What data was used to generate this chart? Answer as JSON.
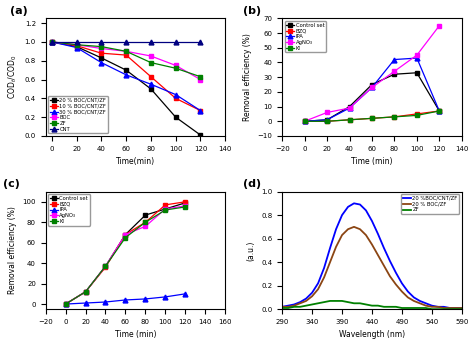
{
  "a_time": [
    0,
    20,
    40,
    60,
    80,
    100,
    120
  ],
  "a_20BOC": [
    1.0,
    0.95,
    0.83,
    0.7,
    0.5,
    0.2,
    0.01
  ],
  "a_10BOC": [
    1.0,
    0.96,
    0.88,
    0.86,
    0.63,
    0.4,
    0.27
  ],
  "a_30BOC": [
    1.0,
    0.94,
    0.78,
    0.65,
    0.55,
    0.44,
    0.27
  ],
  "a_BOC": [
    1.0,
    0.97,
    0.93,
    0.9,
    0.85,
    0.75,
    0.6
  ],
  "a_ZF": [
    1.0,
    0.97,
    0.95,
    0.9,
    0.78,
    0.72,
    0.63
  ],
  "a_CNT": [
    1.0,
    1.0,
    1.0,
    1.0,
    1.0,
    1.0,
    1.0
  ],
  "b_time": [
    0,
    20,
    40,
    60,
    80,
    100,
    120
  ],
  "b_control": [
    0,
    1,
    10,
    25,
    32,
    33,
    7
  ],
  "b_BZQ": [
    0,
    0,
    1,
    2,
    3,
    5,
    7
  ],
  "b_IPA": [
    0,
    1,
    9,
    23,
    42,
    43,
    7
  ],
  "b_AgNO3": [
    0,
    6,
    9,
    23,
    34,
    45,
    65
  ],
  "b_KI": [
    0,
    0,
    1,
    2,
    3,
    4,
    7
  ],
  "c_time": [
    0,
    20,
    40,
    60,
    80,
    100,
    120
  ],
  "c_control": [
    0,
    12,
    37,
    68,
    87,
    93,
    99
  ],
  "c_BZQ": [
    0,
    12,
    36,
    68,
    80,
    97,
    100
  ],
  "c_IPA": [
    0,
    1,
    2,
    4,
    5,
    7,
    10
  ],
  "c_AgNO3": [
    0,
    12,
    37,
    68,
    76,
    93,
    96
  ],
  "c_KI": [
    0,
    12,
    37,
    65,
    80,
    92,
    95
  ],
  "d_wl": [
    290,
    300,
    310,
    320,
    330,
    340,
    350,
    360,
    370,
    380,
    390,
    400,
    410,
    420,
    430,
    440,
    450,
    460,
    470,
    480,
    490,
    500,
    510,
    520,
    530,
    540,
    550,
    560,
    570,
    580,
    590
  ],
  "d_cnt": [
    0.02,
    0.03,
    0.04,
    0.06,
    0.09,
    0.14,
    0.22,
    0.35,
    0.52,
    0.68,
    0.8,
    0.87,
    0.9,
    0.89,
    0.84,
    0.75,
    0.64,
    0.52,
    0.41,
    0.31,
    0.22,
    0.15,
    0.1,
    0.07,
    0.05,
    0.03,
    0.02,
    0.02,
    0.01,
    0.01,
    0.01
  ],
  "d_boc": [
    0.02,
    0.02,
    0.03,
    0.05,
    0.07,
    0.11,
    0.17,
    0.27,
    0.4,
    0.53,
    0.63,
    0.68,
    0.7,
    0.68,
    0.63,
    0.55,
    0.46,
    0.37,
    0.28,
    0.21,
    0.15,
    0.1,
    0.07,
    0.05,
    0.03,
    0.02,
    0.02,
    0.01,
    0.01,
    0.01,
    0.01
  ],
  "d_zf": [
    0.01,
    0.01,
    0.02,
    0.02,
    0.03,
    0.04,
    0.05,
    0.06,
    0.07,
    0.07,
    0.07,
    0.06,
    0.05,
    0.05,
    0.04,
    0.03,
    0.03,
    0.02,
    0.02,
    0.02,
    0.01,
    0.01,
    0.01,
    0.01,
    0.01,
    0.0,
    0.0,
    0.0,
    0.0,
    0.0,
    0.0
  ]
}
